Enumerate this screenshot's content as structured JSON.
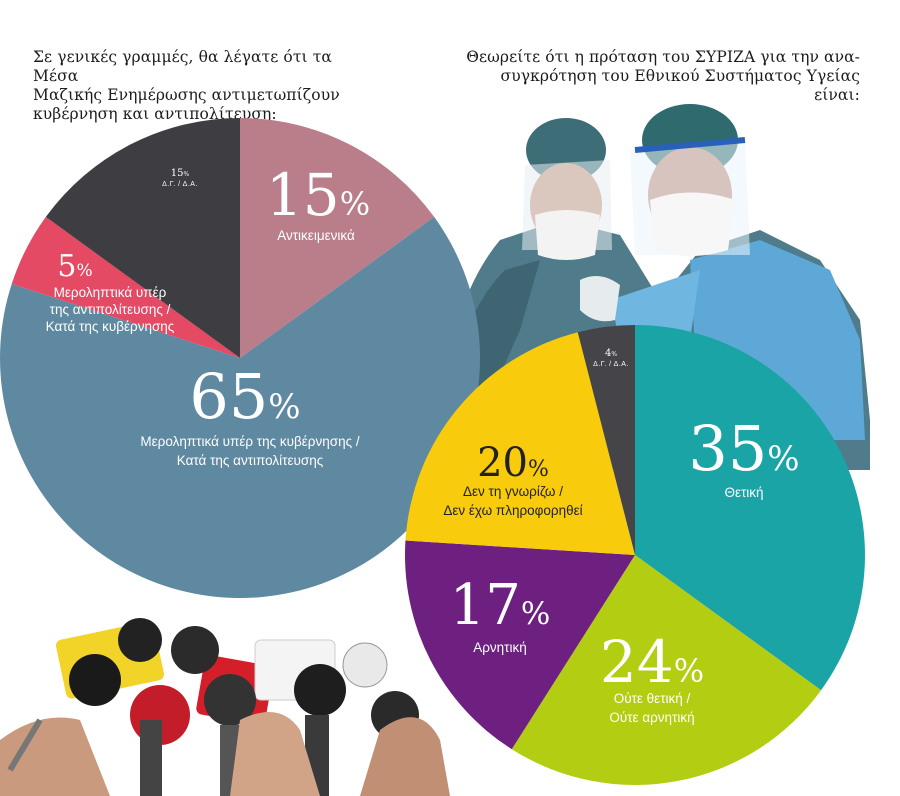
{
  "chart_data": [
    {
      "type": "pie",
      "title": "Σε γενικές γραμμές, θα λέγατε ότι τα Μέσα Μαζικής Ενημέρωσης αντιμετωπίζουν κυβέρνηση και αντιπολίτευση:",
      "slices": [
        {
          "label": "Αντικειμενικά",
          "value": 15,
          "pct": "15%",
          "color": "#b97e8a"
        },
        {
          "label": "Μεροληπτικά υπέρ της κυβέρνησης / Κατά της αντιπολίτευσης",
          "label_lines": [
            "Μεροληπτικά υπέρ της κυβέρνησης /",
            "Κατά της αντιπολίτευσης"
          ],
          "value": 65,
          "pct": "65%",
          "color": "#5f89a1"
        },
        {
          "label": "Μεροληπτικά υπέρ της αντιπολίτευσης / Κατά της κυβέρνησης",
          "label_lines": [
            "Μεροληπτικά υπέρ",
            "της αντιπολίτευσης /",
            "Κατά της κυβέρνησης"
          ],
          "value": 5,
          "pct": "5%",
          "color": "#e44a63"
        },
        {
          "label": "Δ.Γ. / Δ.Α.",
          "value": 15,
          "pct": "15%",
          "color": "#3e3e42"
        }
      ]
    },
    {
      "type": "pie",
      "title": "Θεωρείτε ότι η πρόταση του ΣΥΡΙΖΑ για την ανα- συγκρότηση του Εθνικού Συστήματος Υγείας είναι:",
      "slices": [
        {
          "label": "Θετική",
          "value": 35,
          "pct": "35%",
          "color": "#1aa4a6"
        },
        {
          "label": "Ούτε θετική / Ούτε αρνητική",
          "label_lines": [
            "Ούτε θετική /",
            "Ούτε αρνητική"
          ],
          "value": 24,
          "pct": "24%",
          "color": "#b3cd12"
        },
        {
          "label": "Αρνητική",
          "value": 17,
          "pct": "17%",
          "color": "#6e2080"
        },
        {
          "label": "Δεν τη γνωρίζω / Δεν έχω πληροφορηθεί",
          "label_lines": [
            "Δεν τη γνωρίζω /",
            "Δεν έχω πληροφορηθεί"
          ],
          "value": 20,
          "pct": "20%",
          "color": "#f8cb0c"
        },
        {
          "label": "Δ.Γ. / Δ.Α.",
          "value": 4,
          "pct": "4%",
          "color": "#444449"
        }
      ]
    }
  ],
  "questions": {
    "q1_lines": [
      "Σε γενικές γραμμές, θα λέγατε ότι τα Μέσα",
      "Μαζικής Ενημέρωσης αντιμετωπίζουν",
      "κυβέρνηση και αντιπολίτευση:"
    ],
    "q2_lines": [
      "Θεωρείτε ότι η πρόταση του ΣΥΡΙΖΑ για την ανα-",
      "συγκρότηση του Εθνικού Συστήματος Υγείας είναι:"
    ]
  }
}
